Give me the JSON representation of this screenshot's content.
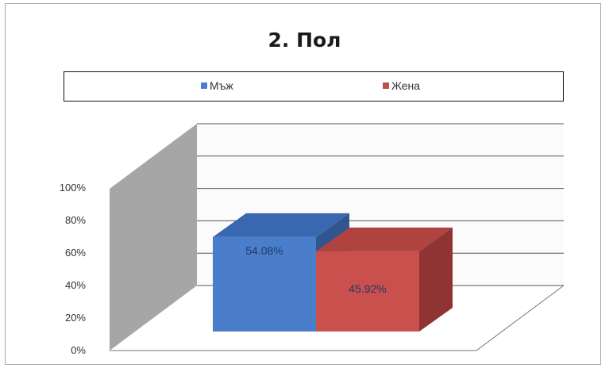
{
  "chart_data": {
    "type": "bar",
    "title": "2. Пол",
    "categories": [
      "Мъж",
      "Жена"
    ],
    "series": [
      {
        "name": "Мъж",
        "value": 54.08,
        "label": "54.08%",
        "color": "#4a7ecb"
      },
      {
        "name": "Жена",
        "value": 45.92,
        "label": "45.92%",
        "color": "#c9504d"
      }
    ],
    "yticks": [
      "0%",
      "20%",
      "40%",
      "60%",
      "80%",
      "100%"
    ],
    "ylim": [
      0,
      100
    ],
    "legend_position": "top",
    "grid": true,
    "style": "3d"
  }
}
